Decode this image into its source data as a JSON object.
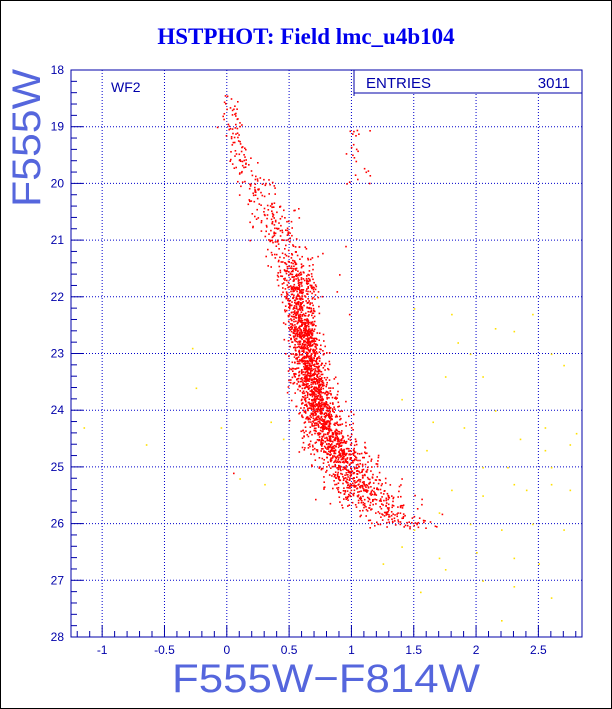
{
  "title": "HSTPHOT: Field lmc_u4b104",
  "panel_label": "WF2",
  "stats": {
    "label": "ENTRIES",
    "value": "3011"
  },
  "colors": {
    "axis": "#0000aa",
    "title": "#0000ee",
    "label": "#5566dd",
    "grid": "#0000cc",
    "points_main": "#ff0000",
    "points_faint": "#ffe000"
  },
  "chart_data": {
    "type": "scatter",
    "title": "HSTPHOT: Field lmc_u4b104",
    "xlabel": "F555W−F814W",
    "ylabel": "F555W",
    "xlim": [
      -1.25,
      2.85
    ],
    "ylim": [
      28,
      18
    ],
    "y_inverted": true,
    "x_ticks": [
      "-1",
      "-0.5",
      "0",
      "0.5",
      "1",
      "1.5",
      "2",
      "2.5"
    ],
    "y_ticks": [
      "18",
      "19",
      "20",
      "21",
      "22",
      "23",
      "24",
      "25",
      "26",
      "27",
      "28"
    ],
    "grid": true,
    "entries": 3011,
    "series": [
      {
        "color": "#ff0000",
        "sequence": {
          "count": 2750,
          "ridge": [
            [
              0.02,
              18.5
            ],
            [
              0.1,
              19.5
            ],
            [
              0.35,
              20.5
            ],
            [
              0.55,
              21.5
            ],
            [
              0.6,
              22.5
            ],
            [
              0.68,
              23.5
            ],
            [
              0.78,
              24.3
            ],
            [
              0.95,
              25.0
            ],
            [
              1.15,
              25.6
            ],
            [
              1.4,
              26.0
            ],
            [
              1.55,
              26.05
            ]
          ],
          "width": [
            0.04,
            0.06,
            0.1,
            0.08,
            0.06,
            0.07,
            0.09,
            0.12,
            0.15,
            0.15,
            0.1
          ],
          "density": [
            0.2,
            0.3,
            0.5,
            0.9,
            2.4,
            3.0,
            3.0,
            2.6,
            2.0,
            0.8,
            0.2
          ]
        },
        "clump": {
          "x": [
            0.95,
            1.15
          ],
          "y": [
            19.0,
            20.0
          ],
          "count": 24
        },
        "points": [
          [
            0.0,
            18.45
          ],
          [
            0.08,
            19.1
          ],
          [
            0.12,
            19.6
          ],
          [
            0.1,
            19.25
          ],
          [
            0.18,
            20.0
          ],
          [
            0.22,
            20.1
          ],
          [
            0.28,
            20.0
          ],
          [
            0.3,
            20.55
          ],
          [
            0.42,
            20.4
          ],
          [
            0.48,
            20.9
          ],
          [
            0.95,
            21.1
          ],
          [
            0.9,
            21.6
          ],
          [
            0.98,
            22.3
          ],
          [
            0.88,
            21.9
          ],
          [
            1.1,
            25.3
          ],
          [
            0.05,
            25.1
          ],
          [
            1.4,
            25.2
          ]
        ]
      },
      {
        "color": "#ffe000",
        "points": [
          [
            -1.15,
            24.3
          ],
          [
            -0.65,
            24.6
          ],
          [
            -0.25,
            23.6
          ],
          [
            -0.28,
            22.9
          ],
          [
            -0.05,
            24.3
          ],
          [
            0.1,
            25.2
          ],
          [
            0.3,
            25.3
          ],
          [
            0.35,
            24.2
          ],
          [
            0.45,
            24.5
          ],
          [
            1.2,
            22.0
          ],
          [
            1.5,
            22.2
          ],
          [
            1.8,
            22.3
          ],
          [
            1.85,
            22.8
          ],
          [
            1.75,
            23.4
          ],
          [
            1.95,
            23.0
          ],
          [
            2.15,
            22.55
          ],
          [
            2.3,
            22.6
          ],
          [
            2.45,
            22.3
          ],
          [
            2.6,
            23.0
          ],
          [
            2.7,
            23.2
          ],
          [
            2.05,
            23.4
          ],
          [
            1.4,
            23.8
          ],
          [
            1.65,
            24.2
          ],
          [
            1.9,
            24.3
          ],
          [
            2.15,
            24.0
          ],
          [
            2.35,
            24.5
          ],
          [
            2.55,
            24.3
          ],
          [
            2.8,
            24.4
          ],
          [
            2.55,
            24.7
          ],
          [
            1.6,
            24.7
          ],
          [
            2.05,
            25.0
          ],
          [
            2.25,
            25.0
          ],
          [
            2.6,
            25.0
          ],
          [
            2.75,
            24.6
          ],
          [
            1.8,
            25.4
          ],
          [
            2.05,
            25.5
          ],
          [
            2.3,
            25.3
          ],
          [
            2.4,
            25.4
          ],
          [
            2.6,
            25.3
          ],
          [
            2.75,
            25.4
          ],
          [
            1.7,
            25.8
          ],
          [
            1.95,
            26.0
          ],
          [
            2.2,
            26.1
          ],
          [
            2.45,
            26.0
          ],
          [
            2.7,
            26.1
          ],
          [
            1.5,
            26.1
          ],
          [
            1.4,
            26.4
          ],
          [
            1.7,
            26.6
          ],
          [
            2.0,
            26.5
          ],
          [
            2.3,
            26.6
          ],
          [
            2.5,
            26.7
          ],
          [
            1.75,
            26.8
          ],
          [
            2.05,
            27.0
          ],
          [
            2.3,
            27.1
          ],
          [
            2.6,
            27.3
          ],
          [
            2.2,
            27.7
          ],
          [
            1.55,
            27.2
          ],
          [
            1.25,
            26.7
          ]
        ]
      }
    ]
  }
}
